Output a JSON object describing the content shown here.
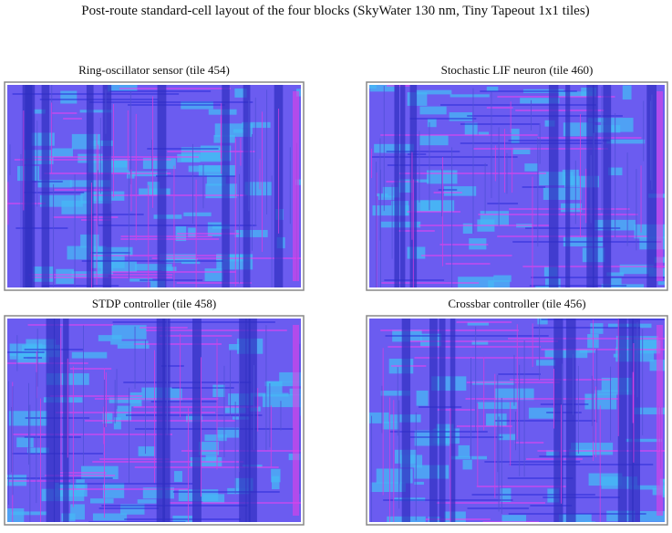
{
  "title": "Post-route standard-cell layout of the four blocks (SkyWater 130 nm, Tiny Tapeout 1x1 tiles)",
  "panels": [
    {
      "title": "Ring-oscillator sensor (tile 454)"
    },
    {
      "title": "Stochastic LIF neuron (tile 460)"
    },
    {
      "title": "STDP controller (tile 458)"
    },
    {
      "title": "Crossbar controller (tile 456)"
    }
  ]
}
